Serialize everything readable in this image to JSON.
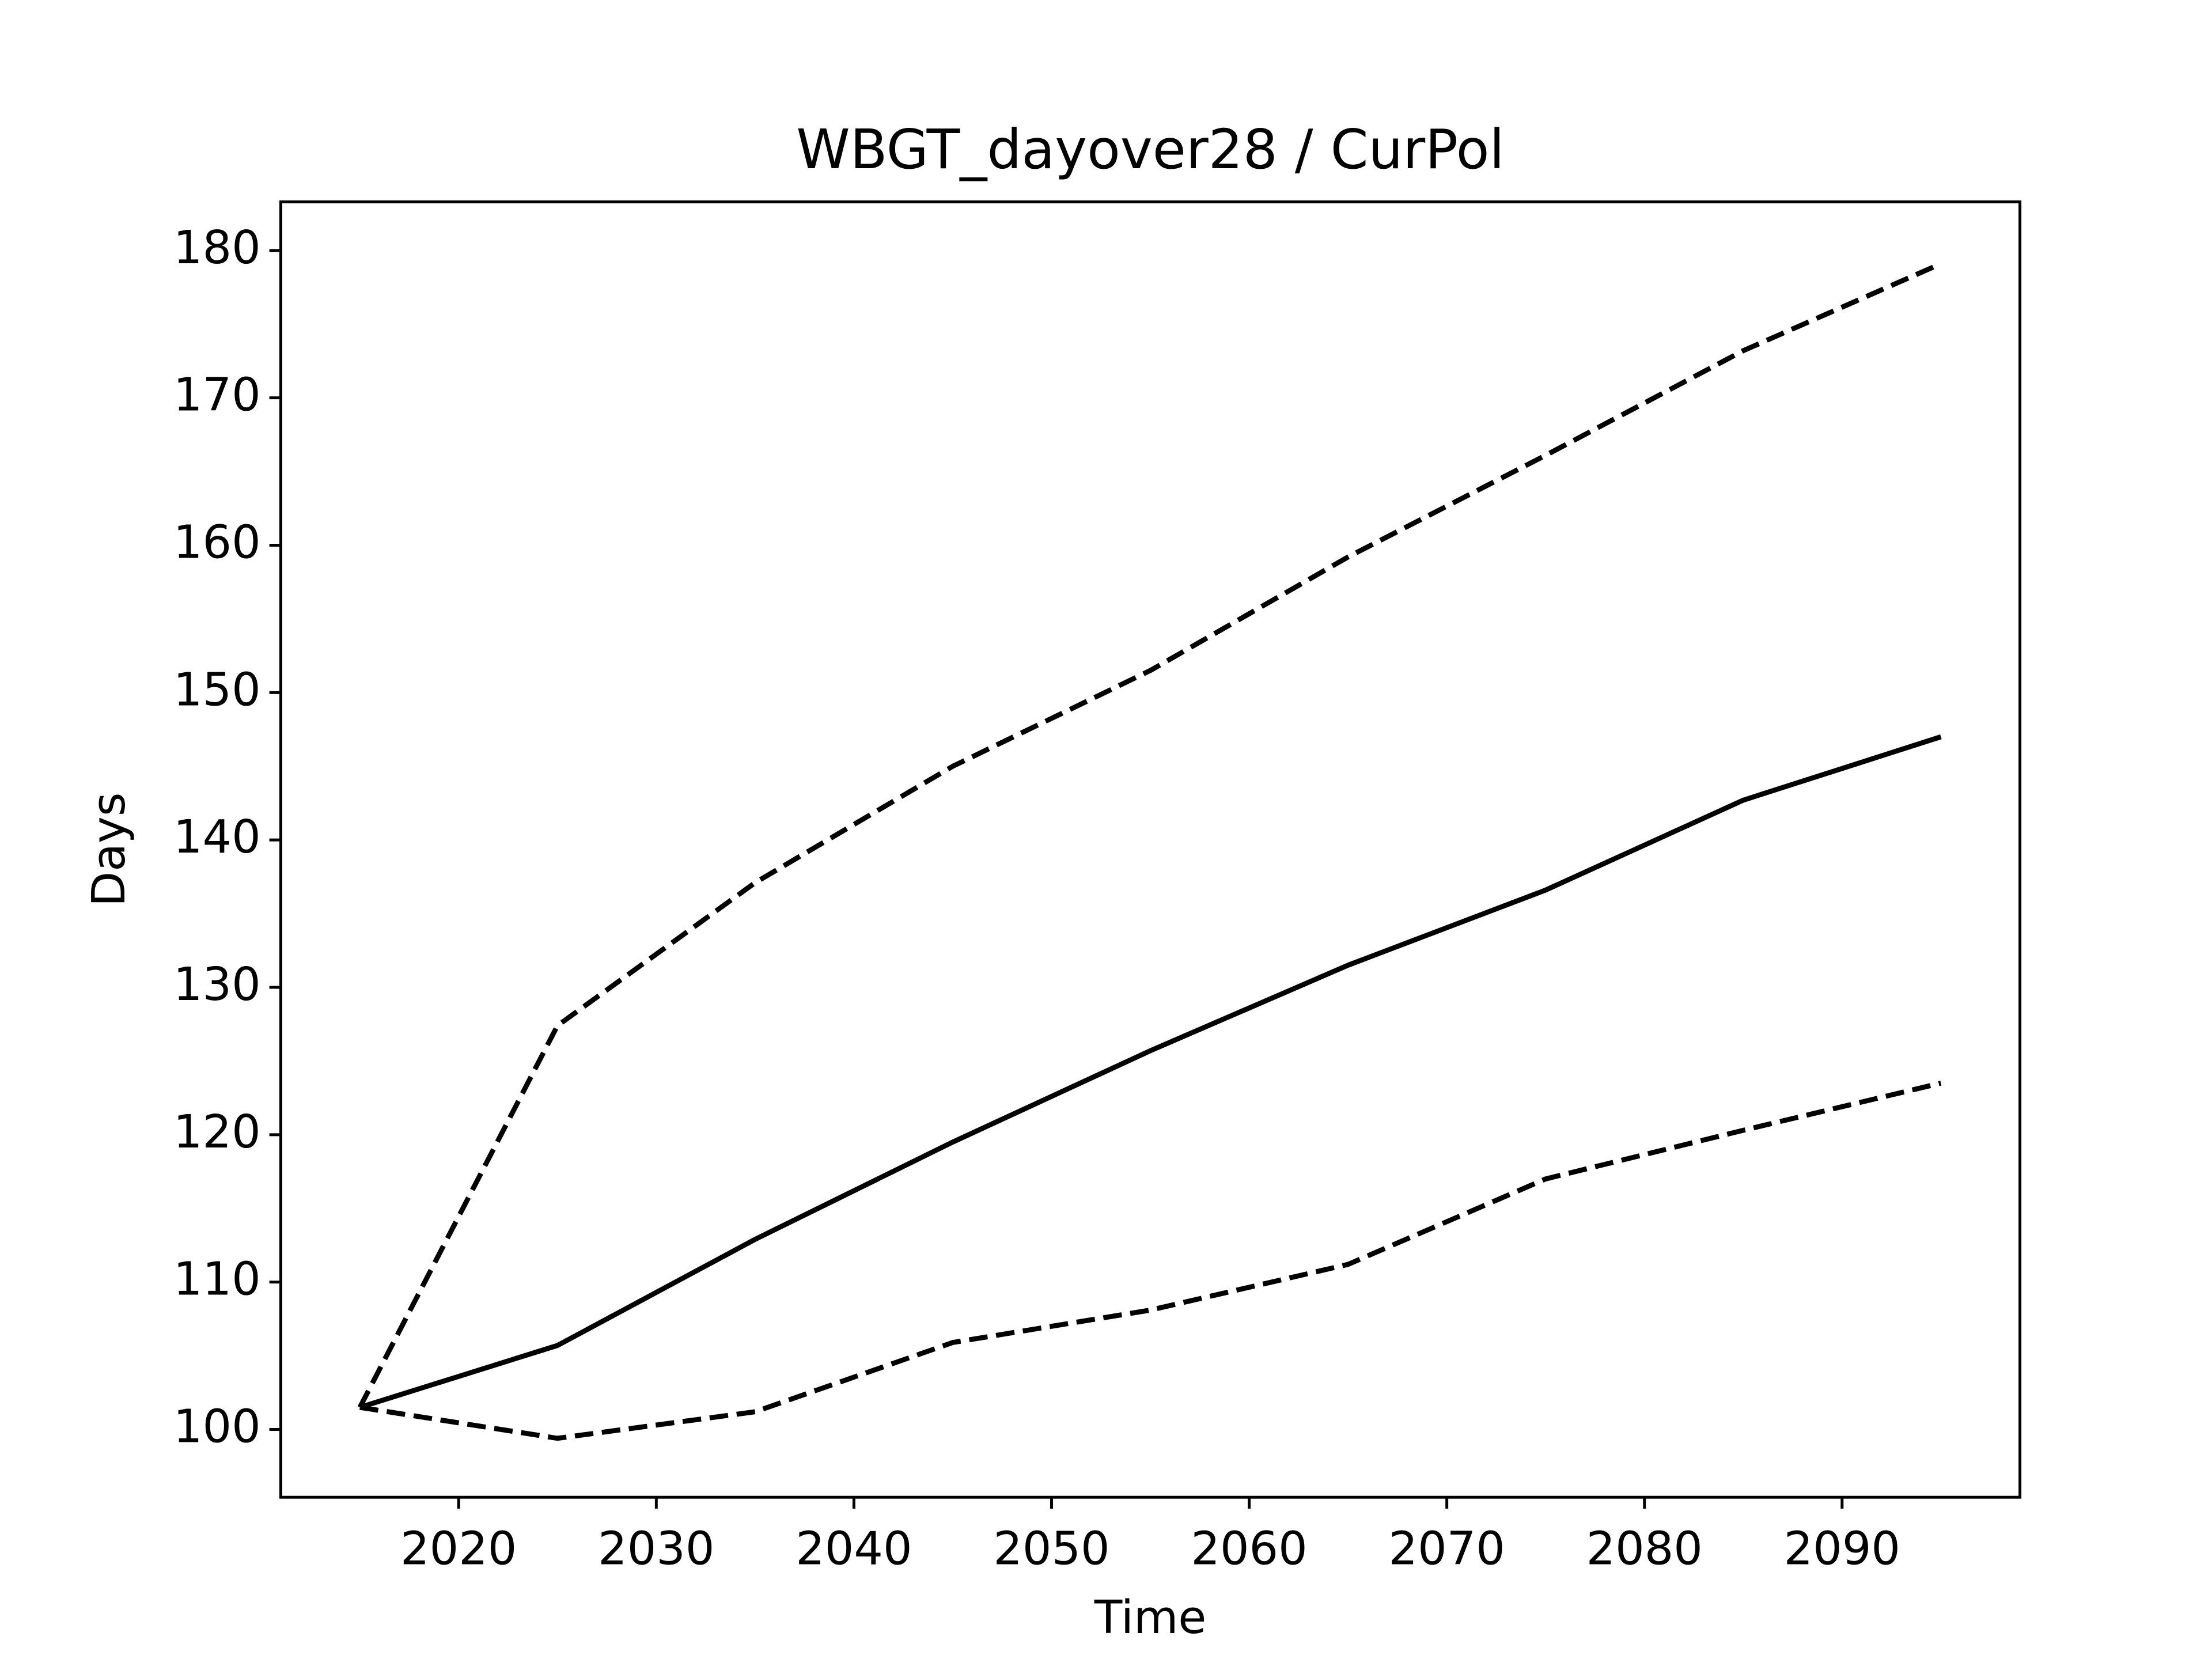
{
  "chart_data": {
    "type": "line",
    "title": "WBGT_dayover28 / CurPol",
    "x_label": "Time",
    "y_label": "Days",
    "x": [
      2015,
      2025,
      2035,
      2045,
      2055,
      2065,
      2075,
      2085,
      2095
    ],
    "series": [
      {
        "color": "#000000",
        "linestyle": "solid",
        "values": [
          101.5,
          105.7,
          112.9,
          119.5,
          125.7,
          131.5,
          136.6,
          142.7,
          147.0
        ]
      },
      {
        "color": "#000000",
        "linestyle": "dashed",
        "values": [
          101.5,
          127.4,
          137.1,
          145.0,
          151.5,
          159.2,
          166.1,
          173.2,
          179.1
        ]
      },
      {
        "color": "#000000",
        "linestyle": "dashed",
        "values": [
          101.5,
          99.4,
          101.2,
          105.9,
          108.1,
          111.2,
          117.0,
          120.3,
          123.5
        ]
      }
    ],
    "xlim": [
      2011,
      2099
    ],
    "xticks": [
      2020,
      2030,
      2040,
      2050,
      2060,
      2070,
      2080,
      2090
    ],
    "ylim": [
      95.4,
      183.3
    ],
    "yticks": [
      100,
      110,
      120,
      130,
      140,
      150,
      160,
      170,
      180
    ],
    "grid": false
  }
}
